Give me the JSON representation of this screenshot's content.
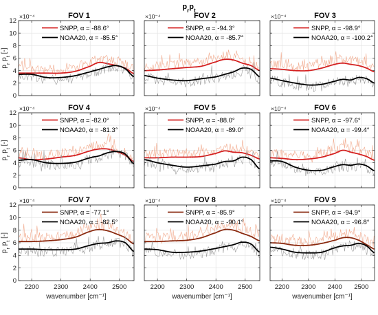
{
  "figure": {
    "title": "p_r p_t",
    "title_main": "p",
    "title_sub1": "r",
    "title_mid": "p",
    "title_sub2": "t"
  },
  "colors": {
    "snpp": "#d42020",
    "snpp_bold_fov789": "#8a2a10",
    "noaa": "#000000",
    "snpp_thin": "#f0a080",
    "noaa_thin": "#909090"
  },
  "chart_data": {
    "type": "line",
    "xlabel": "wavenumber [cm⁻¹]",
    "ylabel": "p_r p_t [-]",
    "y_exponent": "×10⁻⁴",
    "xlim": [
      2155,
      2550
    ],
    "ylim": [
      0,
      12
    ],
    "xticks": [
      2200,
      2300,
      2400,
      2500
    ],
    "yticks": [
      0,
      2,
      4,
      6,
      8,
      10,
      12
    ],
    "grid": true,
    "legend_position": "top",
    "x": [
      2155,
      2200,
      2250,
      2300,
      2350,
      2400,
      2430,
      2460,
      2490,
      2520,
      2550
    ],
    "panels": [
      {
        "title": "FOV 1",
        "series": [
          {
            "name": "SNPP, α = -88.6°",
            "values": [
              3.6,
              3.6,
              3.6,
              3.6,
              3.9,
              4.7,
              5.3,
              5.1,
              4.8,
              4.4,
              3.5
            ]
          },
          {
            "name": "NOAA20, α = -85.5°",
            "values": [
              3.4,
              3.4,
              2.9,
              2.9,
              3.2,
              3.8,
              4.2,
              4.6,
              4.8,
              4.3,
              3.0
            ]
          }
        ]
      },
      {
        "title": "FOV 2",
        "series": [
          {
            "name": "SNPP, α = -94.3°",
            "values": [
              4.0,
              4.1,
              4.3,
              4.5,
              4.7,
              5.4,
              5.8,
              5.7,
              5.2,
              4.8,
              4.0
            ]
          },
          {
            "name": "NOAA20, α = -85.7°",
            "values": [
              3.2,
              2.8,
              2.5,
              2.4,
              2.7,
              3.0,
              3.4,
              3.8,
              4.4,
              4.2,
              3.0
            ]
          }
        ]
      },
      {
        "title": "FOV 3",
        "series": [
          {
            "name": "SNPP, α = -98.9°",
            "values": [
              4.3,
              4.2,
              4.0,
              4.0,
              4.4,
              5.0,
              5.2,
              5.0,
              4.8,
              4.4,
              3.8
            ]
          },
          {
            "name": "NOAA20, α = -100.2°",
            "values": [
              2.8,
              2.4,
              2.0,
              1.7,
              1.8,
              2.3,
              2.6,
              2.5,
              2.9,
              2.7,
              2.0
            ]
          }
        ]
      },
      {
        "title": "FOV 4",
        "series": [
          {
            "name": "SNPP, α = -82.0°",
            "values": [
              4.8,
              4.5,
              4.6,
              4.9,
              5.2,
              5.9,
              6.2,
              6.2,
              5.8,
              5.2,
              4.2
            ]
          },
          {
            "name": "NOAA20, α = -81.3°",
            "values": [
              4.4,
              4.5,
              4.0,
              3.9,
              4.1,
              4.8,
              5.1,
              5.6,
              5.8,
              5.4,
              3.8
            ]
          }
        ]
      },
      {
        "title": "FOV 5",
        "series": [
          {
            "name": "SNPP, α = -88.0°",
            "values": [
              4.8,
              4.8,
              4.9,
              4.9,
              5.0,
              5.5,
              5.9,
              5.7,
              5.6,
              5.2,
              4.6
            ]
          },
          {
            "name": "NOAA20, α = -89.0°",
            "values": [
              4.5,
              4.0,
              3.6,
              3.3,
              3.5,
              3.8,
              4.2,
              4.3,
              4.9,
              4.5,
              3.0
            ]
          }
        ]
      },
      {
        "title": "FOV 6",
        "series": [
          {
            "name": "SNPP, α = -97.6°",
            "values": [
              4.8,
              4.7,
              4.5,
              4.6,
              4.9,
              5.5,
              6.0,
              5.7,
              5.4,
              5.0,
              4.4
            ]
          },
          {
            "name": "NOAA20, α = -99.4°",
            "values": [
              4.3,
              4.2,
              3.3,
              2.8,
              2.8,
              3.4,
              3.7,
              3.6,
              3.8,
              3.5,
              2.7
            ]
          }
        ]
      },
      {
        "title": "FOV 7",
        "series": [
          {
            "name": "SNPP, α = -77.1°",
            "values": [
              6.2,
              6.2,
              6.3,
              6.5,
              6.9,
              7.8,
              8.1,
              7.9,
              7.4,
              6.8,
              5.8
            ]
          },
          {
            "name": "NOAA20, α = -82.5°",
            "values": [
              5.0,
              5.0,
              4.9,
              4.9,
              5.0,
              5.6,
              5.9,
              6.0,
              6.3,
              6.0,
              4.6
            ]
          }
        ]
      },
      {
        "title": "FOV 8",
        "series": [
          {
            "name": "SNPP, α = -85.9°",
            "values": [
              6.2,
              6.2,
              6.3,
              6.4,
              6.8,
              7.6,
              8.1,
              8.0,
              7.5,
              7.0,
              6.3
            ]
          },
          {
            "name": "NOAA20, α = -90.1°",
            "values": [
              5.0,
              4.9,
              4.5,
              4.5,
              4.7,
              5.1,
              5.4,
              5.7,
              6.1,
              5.8,
              4.5
            ]
          }
        ]
      },
      {
        "title": "FOV 9",
        "series": [
          {
            "name": "SNPP, α = -94.9°",
            "values": [
              6.0,
              5.9,
              5.6,
              5.6,
              5.9,
              6.4,
              6.8,
              6.8,
              6.4,
              5.7,
              5.0
            ]
          },
          {
            "name": "NOAA20, α = -96.8°",
            "values": [
              5.3,
              5.0,
              4.5,
              4.4,
              4.5,
              5.2,
              5.5,
              5.6,
              5.9,
              5.5,
              4.4
            ]
          }
        ]
      }
    ]
  }
}
